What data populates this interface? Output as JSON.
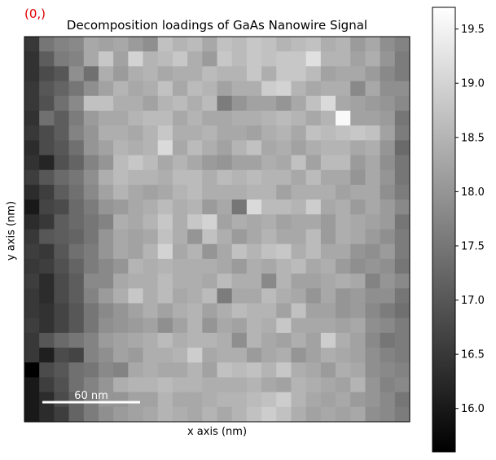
{
  "index_label": "(0,)",
  "chart_data": {
    "type": "heatmap",
    "title": "Decomposition loadings of GaAs Nanowire Signal",
    "xlabel": "x axis (nm)",
    "ylabel": "y axis (nm)",
    "colormap": "gray",
    "colorbar": {
      "range": [
        15.6,
        19.7
      ],
      "ticks": [
        "16.0",
        "16.5",
        "17.0",
        "17.5",
        "18.0",
        "18.5",
        "19.0",
        "19.5"
      ]
    },
    "scalebar": {
      "label": "60 nm"
    },
    "grid_size": [
      26,
      26
    ],
    "values": [
      [
        16.5,
        17.5,
        17.7,
        17.8,
        18.3,
        18.2,
        18.3,
        18.1,
        17.9,
        18.7,
        18.5,
        18.6,
        18.3,
        18.7,
        18.6,
        18.8,
        18.7,
        18.5,
        18.6,
        18.7,
        18.4,
        18.5,
        18.1,
        18.3,
        17.9,
        17.7
      ],
      [
        16.4,
        17.1,
        17.6,
        17.7,
        18.3,
        18.8,
        18.2,
        19.0,
        18.5,
        18.6,
        18.8,
        18.4,
        18.1,
        18.8,
        18.6,
        18.8,
        18.7,
        18.8,
        18.8,
        19.2,
        18.5,
        18.5,
        18.2,
        18.4,
        18.0,
        17.6
      ],
      [
        16.4,
        16.8,
        17.0,
        17.9,
        17.4,
        18.4,
        18.1,
        18.4,
        18.5,
        18.3,
        18.4,
        18.4,
        18.6,
        18.5,
        18.5,
        18.8,
        18.4,
        18.8,
        18.8,
        18.6,
        18.2,
        18.3,
        18.3,
        18.1,
        17.8,
        17.6
      ],
      [
        16.5,
        17.0,
        17.2,
        17.5,
        17.9,
        18.2,
        18.5,
        18.3,
        18.4,
        18.7,
        18.3,
        18.6,
        18.5,
        18.2,
        18.4,
        18.4,
        18.9,
        19.0,
        18.5,
        18.3,
        18.4,
        18.4,
        17.8,
        18.3,
        17.9,
        17.9
      ],
      [
        16.5,
        16.9,
        17.4,
        17.8,
        18.7,
        18.7,
        18.4,
        18.4,
        18.2,
        18.5,
        18.6,
        18.4,
        18.6,
        17.6,
        18.0,
        18.2,
        18.2,
        18.0,
        18.3,
        18.7,
        19.1,
        18.3,
        18.2,
        18.1,
        18.0,
        17.8
      ],
      [
        16.4,
        17.4,
        17.1,
        17.6,
        18.1,
        18.3,
        18.3,
        18.5,
        18.6,
        18.6,
        18.3,
        18.5,
        18.3,
        18.3,
        18.4,
        18.4,
        18.5,
        18.6,
        18.5,
        18.3,
        18.5,
        19.6,
        18.2,
        18.2,
        18.1,
        17.5
      ],
      [
        16.5,
        16.8,
        17.1,
        17.7,
        18.0,
        18.4,
        18.4,
        18.3,
        18.5,
        18.8,
        18.4,
        18.4,
        18.5,
        18.3,
        18.3,
        18.2,
        18.4,
        18.5,
        18.3,
        18.7,
        18.6,
        18.7,
        18.8,
        18.7,
        18.2,
        17.6
      ],
      [
        16.3,
        16.8,
        17.0,
        17.4,
        18.0,
        18.2,
        18.5,
        18.4,
        18.5,
        19.1,
        18.3,
        18.6,
        18.4,
        18.2,
        18.5,
        18.7,
        18.3,
        18.4,
        18.2,
        18.4,
        18.5,
        18.5,
        18.3,
        18.4,
        18.0,
        17.3
      ],
      [
        16.4,
        16.2,
        16.9,
        17.2,
        17.7,
        18.0,
        18.6,
        18.8,
        18.6,
        18.3,
        18.5,
        18.3,
        18.1,
        18.0,
        18.2,
        18.2,
        18.4,
        18.3,
        18.7,
        18.2,
        18.6,
        18.6,
        18.1,
        18.3,
        17.9,
        17.5
      ],
      [
        16.6,
        17.0,
        17.3,
        17.5,
        17.9,
        18.4,
        18.6,
        18.5,
        18.5,
        18.4,
        18.6,
        18.6,
        18.4,
        18.6,
        18.5,
        18.6,
        18.5,
        18.5,
        18.3,
        18.6,
        18.3,
        18.3,
        18.0,
        18.3,
        18.0,
        17.5
      ],
      [
        16.3,
        16.6,
        17.1,
        17.4,
        17.8,
        18.2,
        18.5,
        18.3,
        18.2,
        18.3,
        18.5,
        18.6,
        18.4,
        18.4,
        18.4,
        18.5,
        18.5,
        18.2,
        18.4,
        18.4,
        18.4,
        18.2,
        18.3,
        18.3,
        17.9,
        17.6
      ],
      [
        16.0,
        16.7,
        16.8,
        17.3,
        17.6,
        18.0,
        18.1,
        18.3,
        18.4,
        18.6,
        18.4,
        18.5,
        18.1,
        18.3,
        17.5,
        19.1,
        18.6,
        18.6,
        18.5,
        18.9,
        18.3,
        18.4,
        18.1,
        18.3,
        18.1,
        17.8
      ],
      [
        16.3,
        16.5,
        17.1,
        17.3,
        17.5,
        17.7,
        18.4,
        18.3,
        18.5,
        18.8,
        18.4,
        18.8,
        19.0,
        18.2,
        18.4,
        18.3,
        18.4,
        18.2,
        18.3,
        18.3,
        18.1,
        18.4,
        18.3,
        18.2,
        18.1,
        17.5
      ],
      [
        16.5,
        17.0,
        17.1,
        17.2,
        17.5,
        18.0,
        18.3,
        18.2,
        18.3,
        18.7,
        18.4,
        18.0,
        18.7,
        18.4,
        18.1,
        18.3,
        18.5,
        18.3,
        18.3,
        18.6,
        18.1,
        18.4,
        18.3,
        18.1,
        17.9,
        17.6
      ],
      [
        16.6,
        16.5,
        17.0,
        17.4,
        17.6,
        18.0,
        18.3,
        18.2,
        18.5,
        19.0,
        18.3,
        18.5,
        18.0,
        18.3,
        18.7,
        18.5,
        18.7,
        18.8,
        18.4,
        18.6,
        18.3,
        18.3,
        18.0,
        17.9,
        18.1,
        17.6
      ],
      [
        16.5,
        16.6,
        16.9,
        17.2,
        17.6,
        17.8,
        18.0,
        18.5,
        18.4,
        18.5,
        18.4,
        18.4,
        18.4,
        18.3,
        18.1,
        18.4,
        18.3,
        18.5,
        18.6,
        18.3,
        18.4,
        18.1,
        17.9,
        18.0,
        17.9,
        17.5
      ],
      [
        16.6,
        16.3,
        16.8,
        17.1,
        17.8,
        17.8,
        18.3,
        18.4,
        18.4,
        18.6,
        18.4,
        18.4,
        18.3,
        18.6,
        18.4,
        18.4,
        17.8,
        18.5,
        18.2,
        18.2,
        18.3,
        18.4,
        18.3,
        17.7,
        18.0,
        17.8
      ],
      [
        16.5,
        16.3,
        16.8,
        17.1,
        17.7,
        18.1,
        18.4,
        18.8,
        18.4,
        18.6,
        18.3,
        18.4,
        18.6,
        17.6,
        18.3,
        18.3,
        18.6,
        18.4,
        18.3,
        18.0,
        18.3,
        18.0,
        18.1,
        17.9,
        17.9,
        17.5
      ],
      [
        16.5,
        16.4,
        16.7,
        17.0,
        17.5,
        17.8,
        18.0,
        18.2,
        18.4,
        18.2,
        18.4,
        18.5,
        18.2,
        18.4,
        18.6,
        18.5,
        18.5,
        18.2,
        18.7,
        18.2,
        18.2,
        18.0,
        18.1,
        17.8,
        17.6,
        17.4
      ],
      [
        16.6,
        16.4,
        16.7,
        17.0,
        17.5,
        17.9,
        18.0,
        18.1,
        18.2,
        17.9,
        18.2,
        18.5,
        18.0,
        18.3,
        18.2,
        18.5,
        18.4,
        18.8,
        18.3,
        18.3,
        18.3,
        18.2,
        18.3,
        17.9,
        17.8,
        17.6
      ],
      [
        16.5,
        17.0,
        17.3,
        17.5,
        17.7,
        18.1,
        18.2,
        18.3,
        18.4,
        18.6,
        18.4,
        18.5,
        18.5,
        18.4,
        17.9,
        18.5,
        18.3,
        18.2,
        18.4,
        18.2,
        18.9,
        18.4,
        18.2,
        17.8,
        17.5,
        17.6
      ],
      [
        16.5,
        16.1,
        16.8,
        16.7,
        17.7,
        17.9,
        18.2,
        18.1,
        18.4,
        18.4,
        18.5,
        18.9,
        18.3,
        18.4,
        18.4,
        18.1,
        18.3,
        18.4,
        18.0,
        18.2,
        18.4,
        18.3,
        18.2,
        17.9,
        17.7,
        17.6
      ],
      [
        15.6,
        16.8,
        17.0,
        17.4,
        17.5,
        17.8,
        17.7,
        18.3,
        18.4,
        18.3,
        18.3,
        18.5,
        18.2,
        18.7,
        18.6,
        18.7,
        18.5,
        18.8,
        18.4,
        18.3,
        18.1,
        18.4,
        18.3,
        17.9,
        17.8,
        17.7
      ],
      [
        16.0,
        16.6,
        16.9,
        17.4,
        17.7,
        18.0,
        18.4,
        18.5,
        18.5,
        18.6,
        18.5,
        18.5,
        18.4,
        18.4,
        18.4,
        18.5,
        18.3,
        18.2,
        18.5,
        18.4,
        18.3,
        18.2,
        18.5,
        18.0,
        17.7,
        17.8
      ],
      [
        16.0,
        16.3,
        16.8,
        17.2,
        17.6,
        18.0,
        18.0,
        18.2,
        18.2,
        18.5,
        18.3,
        18.3,
        18.4,
        18.5,
        18.5,
        18.6,
        18.7,
        18.9,
        18.5,
        18.3,
        18.2,
        18.3,
        18.1,
        18.0,
        17.8,
        17.5
      ],
      [
        16.0,
        16.3,
        16.6,
        17.2,
        17.6,
        17.9,
        18.1,
        18.2,
        18.3,
        18.5,
        18.4,
        18.3,
        18.5,
        18.3,
        18.5,
        18.7,
        18.9,
        18.7,
        18.4,
        18.2,
        18.3,
        18.2,
        18.3,
        17.9,
        17.8,
        17.6
      ]
    ]
  }
}
